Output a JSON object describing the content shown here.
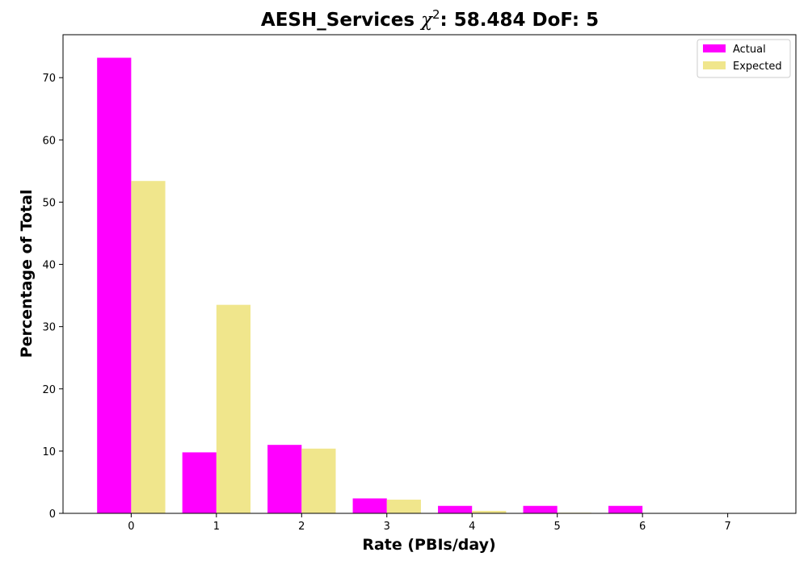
{
  "chart_data": {
    "type": "bar",
    "title_prefix": "AESH_Services ",
    "title_chi": "χ",
    "title_sup": "2",
    "title_suffix": ": 58.484 DoF: 5",
    "xlabel": "Rate (PBIs/day)",
    "ylabel": "Percentage of Total",
    "categories": [
      "0",
      "1",
      "2",
      "3",
      "4",
      "5",
      "6",
      "7"
    ],
    "x": [
      0,
      1,
      2,
      3,
      4,
      5,
      6,
      7
    ],
    "series": [
      {
        "name": "Actual",
        "color": "#ff00ff",
        "values": [
          73.2,
          9.8,
          11.0,
          2.4,
          1.2,
          1.2,
          1.2,
          0.0
        ]
      },
      {
        "name": "Expected",
        "color": "#f0e68c",
        "values": [
          53.4,
          33.5,
          10.4,
          2.2,
          0.4,
          0.1,
          0.0,
          0.0
        ]
      }
    ],
    "yticks": [
      0,
      10,
      20,
      30,
      40,
      50,
      60,
      70
    ],
    "ylim": [
      0,
      76.9
    ],
    "xlim": [
      -0.8,
      7.8
    ],
    "grid": false,
    "legend_position": "top-right"
  }
}
